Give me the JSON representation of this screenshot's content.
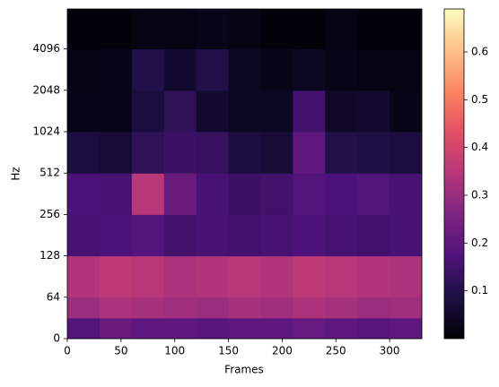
{
  "chart_data": {
    "type": "heatmap",
    "x_label": "Frames",
    "y_label": "Hz",
    "x_bins": [
      0,
      30,
      60,
      90,
      120,
      150,
      180,
      210,
      240,
      270,
      300,
      330
    ],
    "y_bins": [
      0,
      32,
      64,
      128,
      256,
      512,
      1024,
      2048,
      4096,
      8000
    ],
    "z": [
      [
        0.18,
        0.22,
        0.2,
        0.2,
        0.19,
        0.2,
        0.2,
        0.21,
        0.2,
        0.19,
        0.2
      ],
      [
        0.3,
        0.33,
        0.32,
        0.31,
        0.3,
        0.32,
        0.31,
        0.33,
        0.32,
        0.3,
        0.31
      ],
      [
        0.34,
        0.36,
        0.35,
        0.33,
        0.34,
        0.35,
        0.34,
        0.36,
        0.35,
        0.34,
        0.33
      ],
      [
        0.16,
        0.17,
        0.18,
        0.15,
        0.16,
        0.15,
        0.16,
        0.17,
        0.16,
        0.15,
        0.16
      ],
      [
        0.17,
        0.16,
        0.35,
        0.22,
        0.16,
        0.14,
        0.15,
        0.18,
        0.17,
        0.18,
        0.16
      ],
      [
        0.08,
        0.07,
        0.12,
        0.14,
        0.13,
        0.08,
        0.07,
        0.2,
        0.1,
        0.09,
        0.08
      ],
      [
        0.03,
        0.03,
        0.08,
        0.12,
        0.06,
        0.04,
        0.04,
        0.15,
        0.05,
        0.06,
        0.03
      ],
      [
        0.02,
        0.03,
        0.1,
        0.06,
        0.1,
        0.04,
        0.03,
        0.04,
        0.03,
        0.02,
        0.02
      ],
      [
        0.01,
        0.01,
        0.02,
        0.02,
        0.03,
        0.02,
        0.01,
        0.01,
        0.02,
        0.01,
        0.01
      ]
    ],
    "xlim": [
      0,
      330
    ],
    "xticks": [
      0,
      50,
      100,
      150,
      200,
      250,
      300
    ],
    "ylim": [
      0,
      8000
    ],
    "yticks": [
      0,
      64,
      128,
      256,
      512,
      1024,
      2048,
      4096
    ],
    "yscale": "symlog",
    "linthresh": 64,
    "colormap": "magma",
    "clim": [
      0,
      0.69
    ],
    "cticks": [
      0.1,
      0.2,
      0.3,
      0.4,
      0.5,
      0.6
    ]
  }
}
